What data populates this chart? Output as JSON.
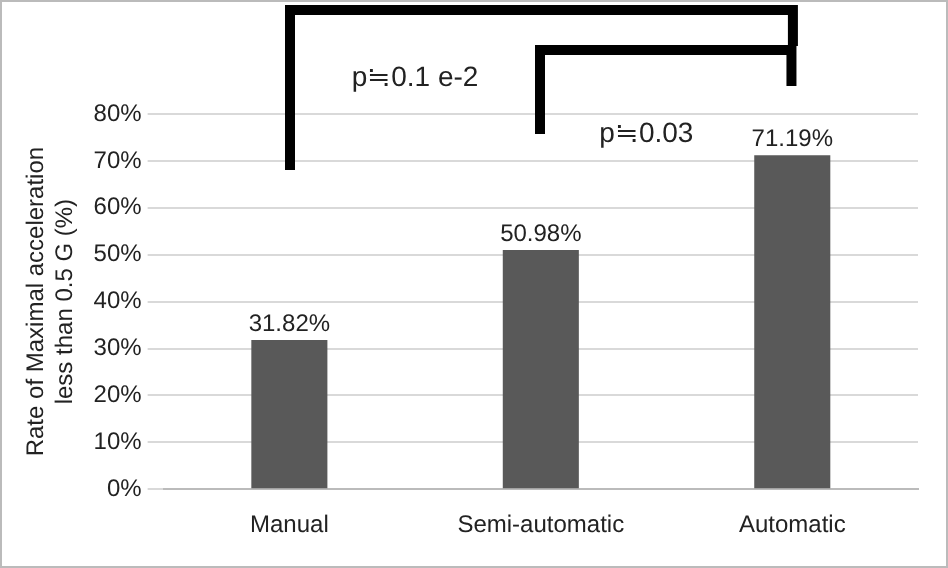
{
  "chart_data": {
    "type": "bar",
    "ylabel": "Rate of Maximal acceleration less than 0.5 G (%)",
    "categories": [
      "Manual",
      "Semi-automatic",
      "Automatic"
    ],
    "values": [
      31.82,
      50.98,
      71.19
    ],
    "value_labels": [
      "31.82%",
      "50.98%",
      "71.19%"
    ],
    "color": "#595959",
    "ylim": [
      0,
      80
    ],
    "yticks": [
      {
        "value": 0,
        "label": "0%"
      },
      {
        "value": 10,
        "label": "10%"
      },
      {
        "value": 20,
        "label": "20%"
      },
      {
        "value": 30,
        "label": "30%"
      },
      {
        "value": 40,
        "label": "40%"
      },
      {
        "value": 50,
        "label": "50%"
      },
      {
        "value": 60,
        "label": "60%"
      },
      {
        "value": 70,
        "label": "70%"
      },
      {
        "value": 80,
        "label": "80%"
      }
    ],
    "grid": "y",
    "legend": false,
    "annotations": [
      "p≒0.1 e-2",
      "p≒0.03"
    ]
  }
}
